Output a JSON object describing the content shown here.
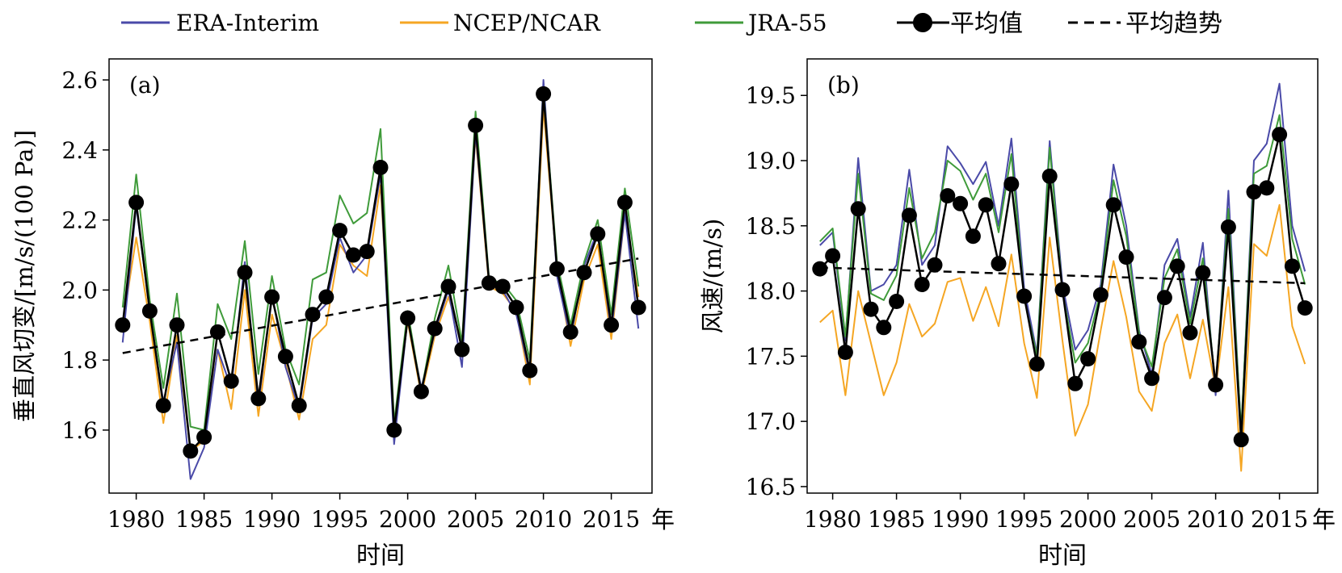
{
  "legend": {
    "items": [
      {
        "label": "ERA-Interim",
        "color": "#4a4aa8",
        "kind": "line"
      },
      {
        "label": "NCEP/NCAR",
        "color": "#f5a623",
        "kind": "line"
      },
      {
        "label": "JRA-55",
        "color": "#3f9b3a",
        "kind": "line"
      },
      {
        "label": "平均值",
        "color": "#000000",
        "kind": "line-marker"
      },
      {
        "label": "平均趋势",
        "color": "#000000",
        "kind": "dashed"
      }
    ]
  },
  "chart_data": [
    {
      "type": "line",
      "panel_label": "(a)",
      "xlabel": "时间",
      "x_unit": "年",
      "ylabel": "垂直风切变/[m/s/(100 Pa)]",
      "xlim": [
        1978,
        2018
      ],
      "ylim": [
        1.42,
        2.66
      ],
      "xticks": [
        1980,
        1985,
        1990,
        1995,
        2000,
        2005,
        2010,
        2015
      ],
      "yticks": [
        1.6,
        1.8,
        2.0,
        2.2,
        2.4,
        2.6
      ],
      "ytick_labels": [
        "1.6",
        "1.8",
        "2.0",
        "2.2",
        "2.4",
        "2.6"
      ],
      "grid": false,
      "x": [
        1979,
        1980,
        1981,
        1982,
        1983,
        1984,
        1985,
        1986,
        1987,
        1988,
        1989,
        1990,
        1991,
        1992,
        1993,
        1994,
        1995,
        1996,
        1997,
        1998,
        1999,
        2000,
        2001,
        2002,
        2003,
        2004,
        2005,
        2006,
        2007,
        2008,
        2009,
        2010,
        2011,
        2012,
        2013,
        2014,
        2015,
        2016,
        2017
      ],
      "series": [
        {
          "name": "ERA-Interim",
          "color": "#4a4aa8",
          "values": [
            1.85,
            2.24,
            1.94,
            1.68,
            1.85,
            1.46,
            1.55,
            1.83,
            1.72,
            2.08,
            1.67,
            1.99,
            1.78,
            1.66,
            1.92,
            1.96,
            2.15,
            2.05,
            2.1,
            2.33,
            1.56,
            1.92,
            1.72,
            1.88,
            2.0,
            1.78,
            2.45,
            2.02,
            2.0,
            1.93,
            1.76,
            2.6,
            2.04,
            1.86,
            2.07,
            2.17,
            1.88,
            2.22,
            1.89
          ]
        },
        {
          "name": "NCEP/NCAR",
          "color": "#f5a623",
          "values": [
            1.9,
            2.15,
            1.91,
            1.62,
            1.87,
            1.54,
            1.57,
            1.83,
            1.66,
            2.0,
            1.64,
            1.93,
            1.79,
            1.63,
            1.86,
            1.9,
            2.13,
            2.07,
            2.04,
            2.3,
            1.62,
            1.91,
            1.7,
            1.87,
            1.98,
            1.85,
            2.44,
            2.01,
            1.99,
            1.94,
            1.73,
            2.52,
            2.06,
            1.84,
            2.03,
            2.13,
            1.86,
            2.22,
            1.98
          ]
        },
        {
          "name": "JRA-55",
          "color": "#3f9b3a",
          "values": [
            1.95,
            2.33,
            1.97,
            1.72,
            1.99,
            1.61,
            1.6,
            1.96,
            1.86,
            2.14,
            1.76,
            2.04,
            1.83,
            1.73,
            2.03,
            2.05,
            2.27,
            2.19,
            2.22,
            2.46,
            1.62,
            1.94,
            1.71,
            1.92,
            2.07,
            1.85,
            2.51,
            2.03,
            2.02,
            1.97,
            1.8,
            2.57,
            2.08,
            1.9,
            2.08,
            2.2,
            1.93,
            2.29,
            2.01
          ]
        },
        {
          "name": "平均值",
          "color": "#000000",
          "marker": "circle",
          "values": [
            1.9,
            2.25,
            1.94,
            1.67,
            1.9,
            1.54,
            1.58,
            1.88,
            1.74,
            2.05,
            1.69,
            1.98,
            1.81,
            1.67,
            1.93,
            1.98,
            2.17,
            2.1,
            2.11,
            2.35,
            1.6,
            1.92,
            1.71,
            1.89,
            2.01,
            1.83,
            2.47,
            2.02,
            2.01,
            1.95,
            1.77,
            2.56,
            2.06,
            1.88,
            2.05,
            2.16,
            1.9,
            2.25,
            1.95
          ]
        },
        {
          "name": "平均趋势",
          "color": "#000000",
          "style": "dashed",
          "x": [
            1979,
            2017
          ],
          "values": [
            1.82,
            2.09
          ]
        }
      ]
    },
    {
      "type": "line",
      "panel_label": "(b)",
      "xlabel": "时间",
      "x_unit": "年",
      "ylabel": "风速/(m/s)",
      "xlim": [
        1978,
        2018
      ],
      "ylim": [
        16.45,
        19.78
      ],
      "xticks": [
        1980,
        1985,
        1990,
        1995,
        2000,
        2005,
        2010,
        2015
      ],
      "yticks": [
        16.5,
        17.0,
        17.5,
        18.0,
        18.5,
        19.0,
        19.5
      ],
      "ytick_labels": [
        "16.5",
        "17.0",
        "17.5",
        "18.0",
        "18.5",
        "19.0",
        "19.5"
      ],
      "grid": false,
      "x": [
        1979,
        1980,
        1981,
        1982,
        1983,
        1984,
        1985,
        1986,
        1987,
        1988,
        1989,
        1990,
        1991,
        1992,
        1993,
        1994,
        1995,
        1996,
        1997,
        1998,
        1999,
        2000,
        2001,
        2002,
        2003,
        2004,
        2005,
        2006,
        2007,
        2008,
        2009,
        2010,
        2011,
        2012,
        2013,
        2014,
        2015,
        2016,
        2017
      ],
      "series": [
        {
          "name": "ERA-Interim",
          "color": "#4a4aa8",
          "values": [
            18.35,
            18.45,
            17.62,
            19.02,
            18.0,
            18.05,
            18.2,
            18.93,
            18.2,
            18.35,
            19.11,
            18.98,
            18.82,
            18.99,
            18.5,
            19.17,
            18.02,
            17.52,
            19.15,
            18.05,
            17.55,
            17.7,
            18.05,
            18.97,
            18.5,
            17.7,
            17.36,
            18.2,
            18.4,
            17.8,
            18.37,
            17.2,
            18.77,
            16.9,
            19.0,
            19.13,
            19.59,
            18.5,
            18.15
          ]
        },
        {
          "name": "NCEP/NCAR",
          "color": "#f5a623",
          "values": [
            17.76,
            17.85,
            17.2,
            18.0,
            17.6,
            17.2,
            17.45,
            17.9,
            17.65,
            17.75,
            18.07,
            18.1,
            17.77,
            18.03,
            17.73,
            18.28,
            17.6,
            17.18,
            18.41,
            17.62,
            16.89,
            17.13,
            17.7,
            18.23,
            17.8,
            17.23,
            17.08,
            17.6,
            17.82,
            17.33,
            17.78,
            17.25,
            18.03,
            16.62,
            18.36,
            18.27,
            18.66,
            17.73,
            17.44
          ]
        },
        {
          "name": "JRA-55",
          "color": "#3f9b3a",
          "values": [
            18.38,
            18.48,
            17.65,
            18.9,
            17.98,
            17.93,
            18.12,
            18.79,
            18.25,
            18.45,
            19.0,
            18.92,
            18.7,
            18.9,
            18.45,
            19.05,
            17.95,
            17.5,
            19.1,
            18.0,
            17.45,
            17.6,
            18.0,
            18.85,
            18.42,
            17.68,
            17.42,
            18.1,
            18.32,
            17.75,
            18.25,
            17.26,
            18.63,
            16.93,
            18.9,
            18.96,
            19.35,
            18.4,
            18.05
          ]
        },
        {
          "name": "平均值",
          "color": "#000000",
          "marker": "circle",
          "values": [
            18.17,
            18.27,
            17.53,
            18.63,
            17.86,
            17.72,
            17.92,
            18.58,
            18.05,
            18.2,
            18.73,
            18.67,
            18.42,
            18.66,
            18.21,
            18.82,
            17.96,
            17.44,
            18.88,
            18.01,
            17.29,
            17.48,
            17.97,
            18.66,
            18.26,
            17.61,
            17.33,
            17.95,
            18.19,
            17.68,
            18.14,
            17.28,
            18.49,
            16.86,
            18.76,
            18.79,
            19.2,
            18.19,
            17.87
          ]
        },
        {
          "name": "平均趋势",
          "color": "#000000",
          "style": "dashed",
          "x": [
            1979,
            2017
          ],
          "values": [
            18.18,
            18.06
          ]
        }
      ]
    }
  ]
}
